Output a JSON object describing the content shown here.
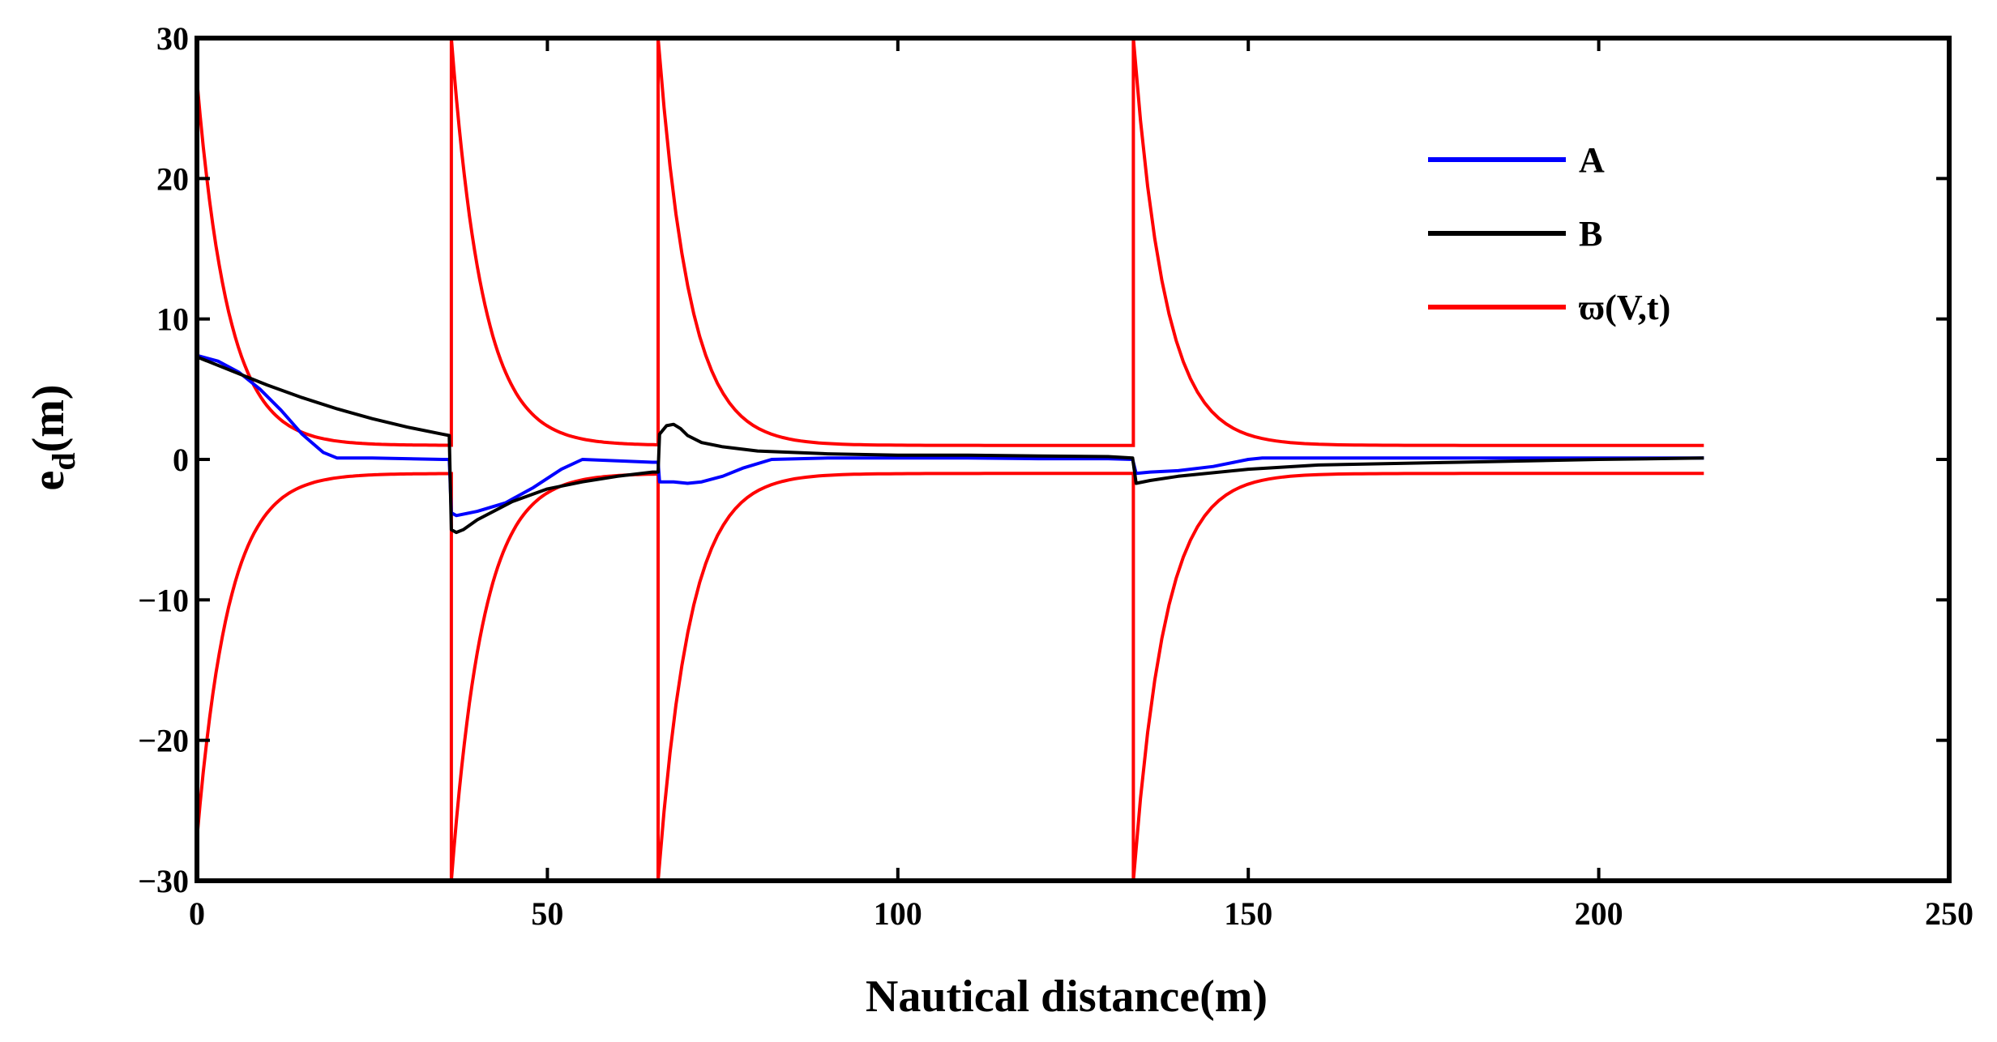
{
  "chart_data": {
    "type": "line",
    "title": "",
    "xlabel": "Nautical distance(m)",
    "ylabel_main": "e",
    "ylabel_sub": "d",
    "ylabel_tail": "(m)",
    "xlim": [
      0,
      250
    ],
    "ylim": [
      -30,
      30
    ],
    "xticks": [
      0,
      50,
      100,
      150,
      200,
      250
    ],
    "yticks": [
      -30,
      -20,
      -10,
      0,
      10,
      20,
      30
    ],
    "xtick_labels": [
      "0",
      "50",
      "100",
      "150",
      "200",
      "250"
    ],
    "ytick_labels": [
      "−30",
      "−20",
      "−10",
      "0",
      "10",
      "20",
      "30"
    ],
    "grid": false,
    "legend_position": "top-right",
    "series": [
      {
        "name": "A",
        "color": "#0000ff",
        "x": [
          0,
          3,
          6,
          9,
          12,
          15,
          18,
          20,
          25,
          30,
          35,
          36,
          36.3,
          37,
          40,
          44,
          48,
          52,
          55,
          60,
          65,
          65.8,
          66,
          68,
          70,
          72,
          75,
          78,
          82,
          90,
          100,
          110,
          120,
          130,
          133.5,
          134,
          136,
          140,
          145,
          150,
          152,
          160,
          180,
          200,
          215
        ],
        "values": [
          7.4,
          7.0,
          6.2,
          5.0,
          3.5,
          1.8,
          0.5,
          0.1,
          0.1,
          0.05,
          0.0,
          0.0,
          -3.8,
          -4.0,
          -3.7,
          -3.1,
          -2.0,
          -0.7,
          0.0,
          -0.1,
          -0.2,
          -0.2,
          -1.6,
          -1.6,
          -1.7,
          -1.6,
          -1.2,
          -0.6,
          0.0,
          0.1,
          0.1,
          0.1,
          0.05,
          0.05,
          0.0,
          -1.0,
          -0.9,
          -0.8,
          -0.5,
          0.0,
          0.1,
          0.1,
          0.1,
          0.1,
          0.1
        ]
      },
      {
        "name": "B",
        "color": "#000000",
        "x": [
          0,
          5,
          10,
          15,
          20,
          25,
          30,
          35,
          36,
          36.3,
          37,
          38,
          40,
          45,
          50,
          55,
          60,
          65,
          65.8,
          66,
          67,
          68,
          69,
          70,
          72,
          75,
          80,
          90,
          100,
          110,
          120,
          130,
          133.5,
          134,
          136,
          140,
          150,
          160,
          180,
          200,
          215
        ],
        "values": [
          7.3,
          6.3,
          5.3,
          4.4,
          3.6,
          2.9,
          2.3,
          1.8,
          1.7,
          -5.0,
          -5.2,
          -5.0,
          -4.3,
          -3.0,
          -2.1,
          -1.6,
          -1.2,
          -0.9,
          -0.9,
          1.8,
          2.4,
          2.5,
          2.2,
          1.7,
          1.2,
          0.9,
          0.6,
          0.4,
          0.3,
          0.3,
          0.25,
          0.2,
          0.1,
          -1.7,
          -1.5,
          -1.2,
          -0.7,
          -0.4,
          -0.2,
          0.0,
          0.1
        ]
      },
      {
        "name": "ϖ(V,t)",
        "color": "#ff0000",
        "kind": "envelope",
        "resets": [
          0,
          36.3,
          65.8,
          133.6
        ],
        "peaks": [
          27,
          30,
          30,
          30
        ],
        "floor": 1,
        "decay_length": 4.5,
        "x_end": 215
      }
    ]
  }
}
